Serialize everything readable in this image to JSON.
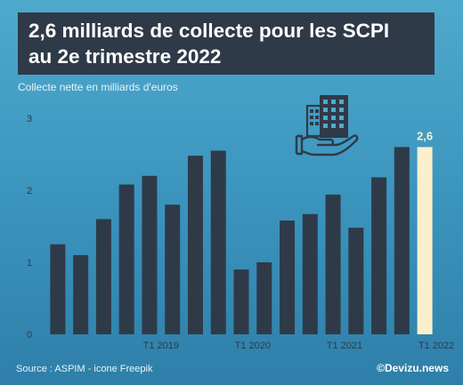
{
  "header": {
    "title_line1": "2,6 milliards de collecte pour les SCPI",
    "title_line2": "au 2e trimestre 2022"
  },
  "footer": {
    "source": "Source : ASPIM - icone Freepik",
    "brand": "©Devizu.news"
  },
  "colors": {
    "bar": "#2f3a48",
    "highlight_bar": "#fbefcd",
    "highlight_label": "#fbefcd",
    "title_bg": "#2f3a48",
    "icon": "#2f3a48"
  },
  "icon": "building-in-hand-icon",
  "chart_data": {
    "type": "bar",
    "title": "2,6 milliards de collecte pour les SCPI au 2e trimestre 2022",
    "ylabel": "Collecte nette en milliards d'euros",
    "xlabel": "",
    "ylim": [
      0,
      3
    ],
    "yticks": [
      0,
      1,
      2,
      3
    ],
    "grid": false,
    "x_tick_labels": [
      {
        "label": "T1 2019",
        "index": 5
      },
      {
        "label": "T1 2020",
        "index": 9
      },
      {
        "label": "T1 2021",
        "index": 13
      },
      {
        "label": "T1 2022",
        "index": 17
      }
    ],
    "values": [
      1.25,
      1.1,
      1.6,
      2.08,
      2.2,
      1.8,
      2.48,
      2.55,
      0.9,
      1.0,
      1.58,
      1.67,
      1.94,
      1.48,
      2.18,
      2.6,
      2.6
    ],
    "highlight_index": 16,
    "data_labels": [
      {
        "index": 16,
        "text": "2,6"
      }
    ]
  }
}
